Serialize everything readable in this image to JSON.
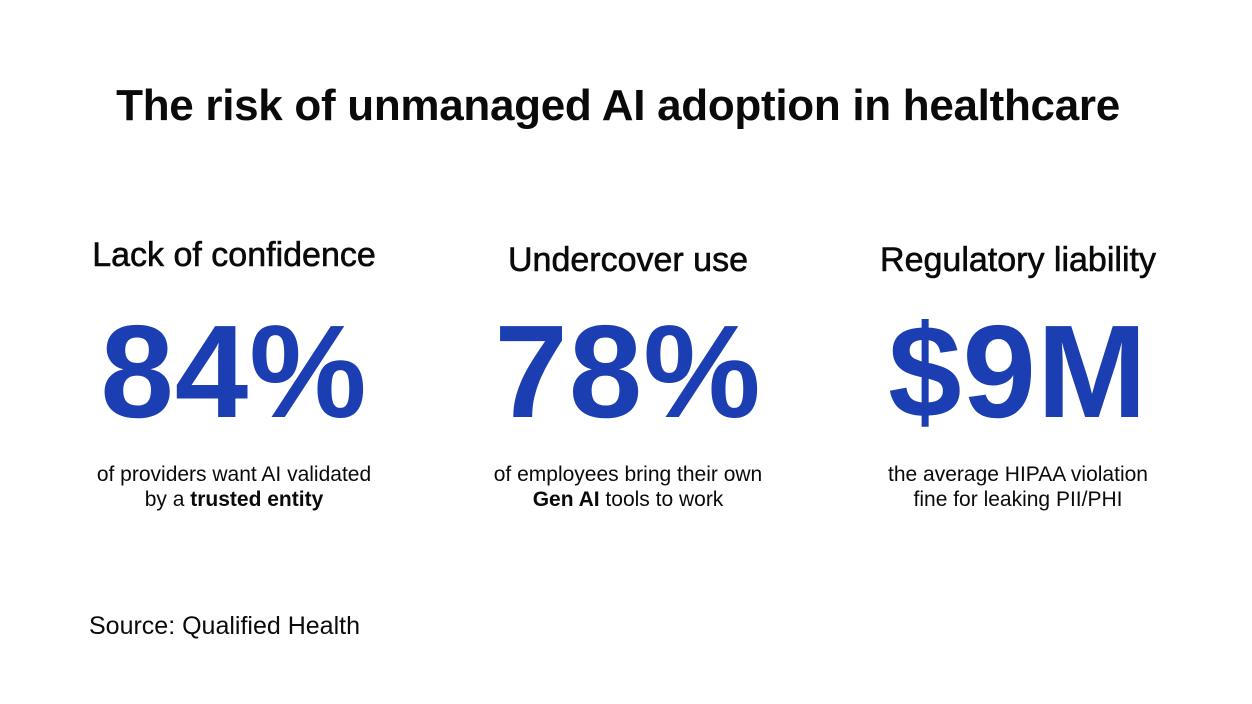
{
  "title": "The risk of unmanaged AI adoption in healthcare",
  "accent_color": "#1b3fb2",
  "stats": [
    {
      "heading": "Lack of confidence",
      "value": "84%",
      "desc_line1": "of providers want AI validated",
      "desc_line2_prefix": "by a ",
      "desc_line2_bold": "trusted entity",
      "desc_line2_suffix": ""
    },
    {
      "heading": "Undercover use",
      "value": "78%",
      "desc_line1": "of employees bring their own",
      "desc_line2_prefix": "",
      "desc_line2_bold": "Gen AI",
      "desc_line2_suffix": " tools to work"
    },
    {
      "heading": "Regulatory liability",
      "value": "$9M",
      "desc_line1": "the average HIPAA violation",
      "desc_line2_prefix": "fine for leaking PII/PHI",
      "desc_line2_bold": "",
      "desc_line2_suffix": ""
    }
  ],
  "source": "Source: Qualified Health"
}
